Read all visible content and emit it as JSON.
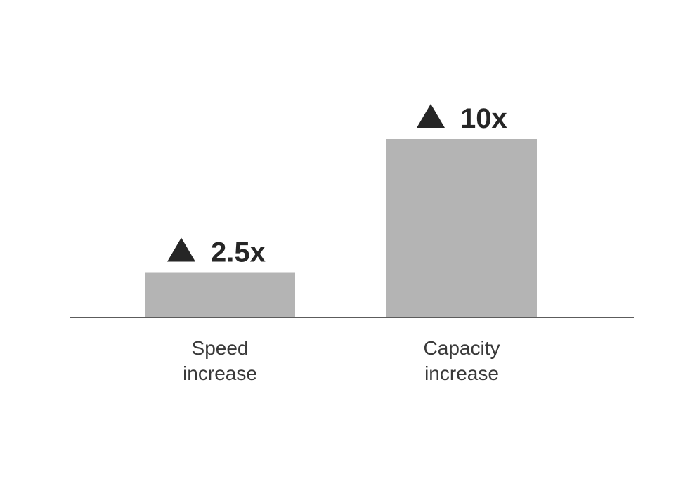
{
  "chart_data": {
    "type": "bar",
    "categories": [
      [
        "Speed",
        "increase"
      ],
      [
        "Capacity",
        "increase"
      ]
    ],
    "values": [
      2.5,
      10
    ],
    "value_labels": [
      "2.5x",
      "10x"
    ],
    "value_marker_icon": "up-triangle-icon",
    "title": "",
    "xlabel": "",
    "ylabel": "",
    "ylim": [
      0,
      12.1
    ],
    "grid": false,
    "legend": "none",
    "colors": {
      "bar": "#b4b4b4",
      "axis": "#262626",
      "value_text": "#262626",
      "category_text": "#3a3a3a"
    }
  }
}
